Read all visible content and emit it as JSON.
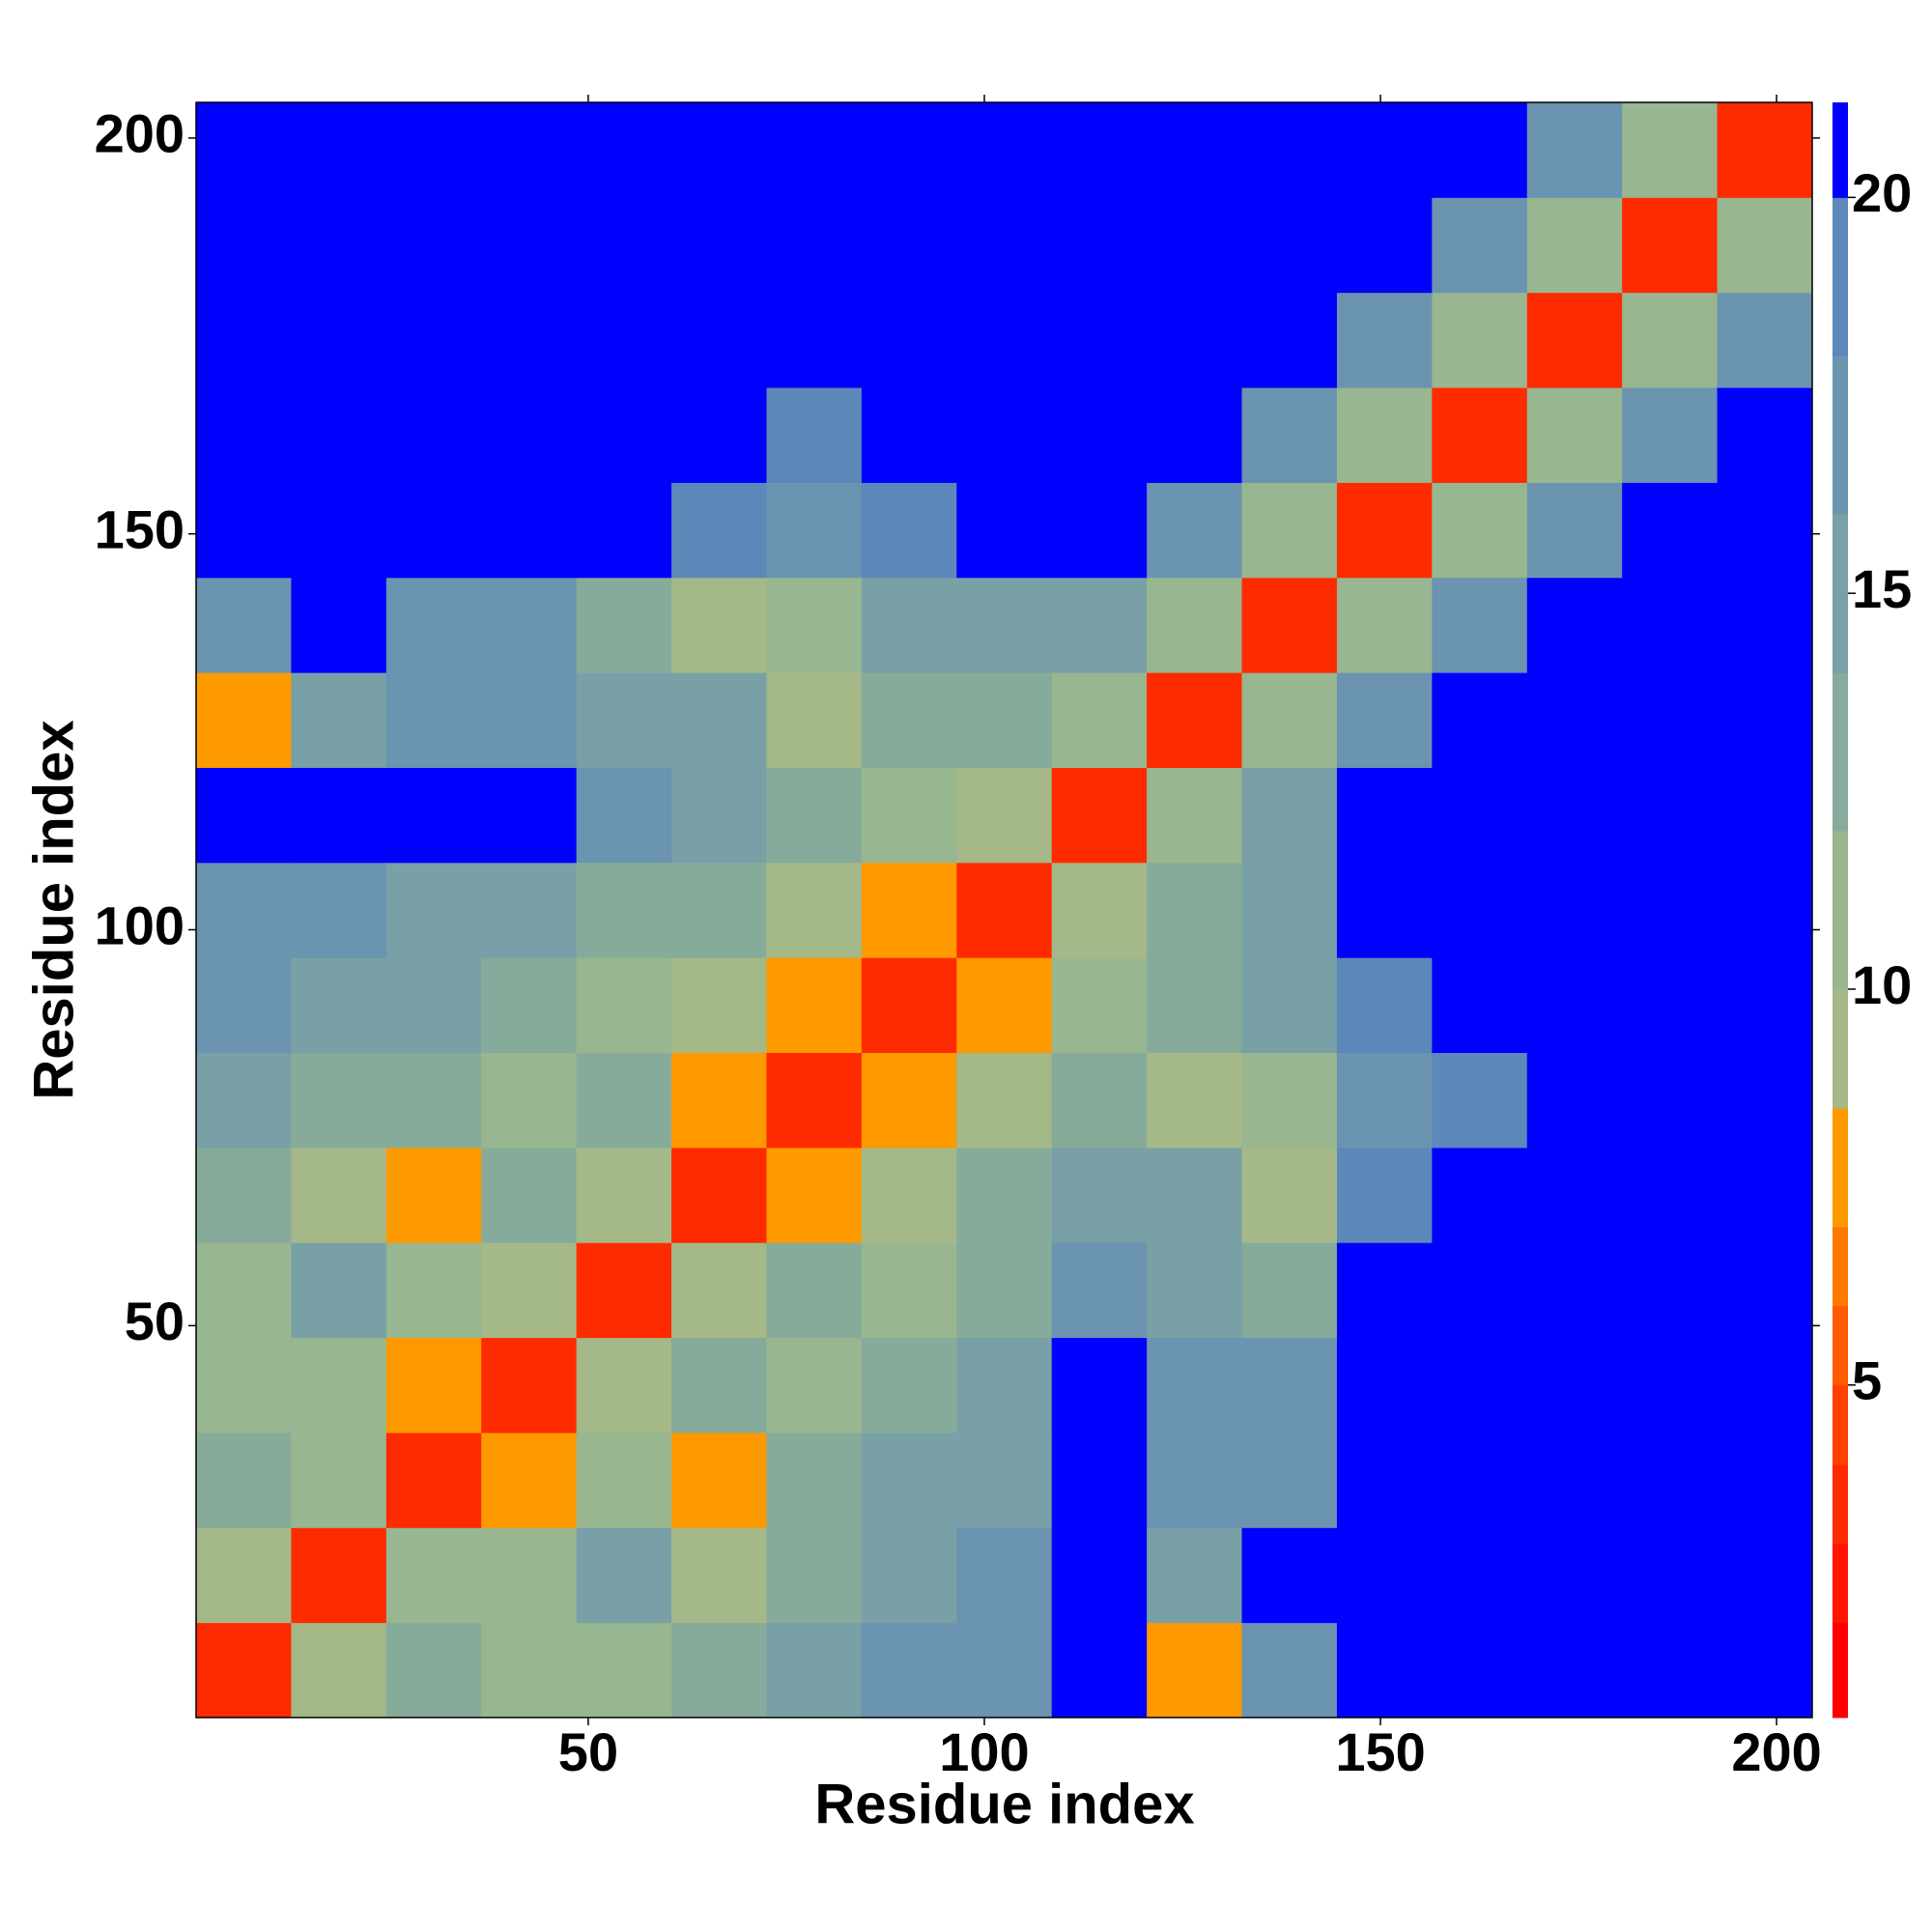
{
  "chart_data": {
    "type": "heatmap",
    "xlabel": "Residue index",
    "ylabel": "Residue index",
    "x": [
      6.5,
      18.5,
      30.5,
      42.5,
      54.5,
      66.5,
      78.5,
      90.5,
      102.5,
      114.5,
      126.5,
      138.5,
      150.5,
      162.5,
      174.5,
      186.5,
      198.5
    ],
    "y": [
      6.5,
      18.5,
      30.5,
      42.5,
      54.5,
      66.5,
      78.5,
      90.5,
      102.5,
      114.5,
      126.5,
      138.5,
      150.5,
      162.5,
      174.5,
      186.5,
      198.5
    ],
    "z": [
      [
        4,
        10,
        14,
        11,
        12,
        14,
        15,
        17,
        17,
        21,
        8,
        18,
        21,
        21,
        21,
        21,
        21
      ],
      [
        10,
        4,
        11,
        12,
        15,
        9,
        14,
        16,
        18,
        21,
        16,
        21,
        21,
        21,
        21,
        21,
        21
      ],
      [
        14,
        11,
        4,
        8,
        12,
        8,
        13,
        15,
        15,
        21,
        18,
        18,
        21,
        21,
        21,
        21,
        21
      ],
      [
        11,
        12,
        8,
        4,
        9,
        13,
        12,
        14,
        16,
        21,
        18,
        17,
        21,
        21,
        21,
        21,
        21
      ],
      [
        12,
        15,
        12,
        9,
        4,
        10,
        13,
        12,
        14,
        18,
        16,
        14,
        21,
        21,
        21,
        21,
        21
      ],
      [
        14,
        9,
        8,
        13,
        10,
        4,
        8,
        9,
        13,
        16,
        15,
        10,
        19,
        21,
        21,
        21,
        21
      ],
      [
        15,
        14,
        13,
        12,
        13,
        8,
        4,
        8,
        9,
        14,
        9,
        11,
        18,
        20,
        21,
        21,
        21
      ],
      [
        17,
        16,
        15,
        14,
        12,
        9,
        8,
        4,
        8,
        12,
        13,
        15,
        20,
        21,
        21,
        21,
        21
      ],
      [
        17,
        18,
        15,
        16,
        14,
        13,
        9,
        8,
        4,
        9,
        13,
        15,
        21,
        21,
        21,
        21,
        21
      ],
      [
        21,
        21,
        21,
        21,
        18,
        16,
        14,
        12,
        9,
        4,
        11,
        16,
        21,
        21,
        21,
        21,
        21
      ],
      [
        8,
        16,
        18,
        18,
        16,
        15,
        9,
        13,
        13,
        11,
        4,
        11,
        18,
        21,
        21,
        21,
        21
      ],
      [
        18,
        21,
        18,
        17,
        14,
        10,
        11,
        15,
        15,
        16,
        11,
        4,
        11,
        18,
        21,
        21,
        21
      ],
      [
        21,
        21,
        21,
        21,
        21,
        19,
        18,
        20,
        21,
        21,
        18,
        11,
        4,
        11,
        17,
        21,
        21
      ],
      [
        21,
        21,
        21,
        21,
        21,
        21,
        20,
        21,
        21,
        21,
        21,
        18,
        11,
        4,
        12,
        17,
        21
      ],
      [
        21,
        21,
        21,
        21,
        21,
        21,
        21,
        21,
        21,
        21,
        21,
        21,
        17,
        12,
        4,
        12,
        17
      ],
      [
        21,
        21,
        21,
        21,
        21,
        21,
        21,
        21,
        21,
        21,
        21,
        21,
        21,
        17,
        12,
        4,
        12
      ],
      [
        21,
        21,
        21,
        21,
        21,
        21,
        21,
        21,
        21,
        21,
        21,
        21,
        21,
        21,
        17,
        12,
        4
      ]
    ],
    "xlim": [
      0.5,
      204.5
    ],
    "ylim": [
      0.5,
      204.5
    ],
    "xticks": [
      50,
      100,
      150,
      200
    ],
    "yticks": [
      50,
      100,
      150,
      200
    ],
    "clim": [
      0.8,
      21.2
    ],
    "cticks": [
      5,
      10,
      15,
      20
    ],
    "color_levels": [
      0.8,
      2,
      3,
      4,
      5,
      6,
      7,
      8.5,
      10,
      12,
      14,
      16,
      18,
      20,
      21.2
    ],
    "colors": [
      "#ff0000",
      "#ff1500",
      "#ff2b00",
      "#ff4000",
      "#ff5a00",
      "#ff7800",
      "#ff9900",
      "#a4b987",
      "#98b690",
      "#87ab9a",
      "#78a0a6",
      "#6a94b0",
      "#5c88ba",
      "#0000ff"
    ]
  }
}
